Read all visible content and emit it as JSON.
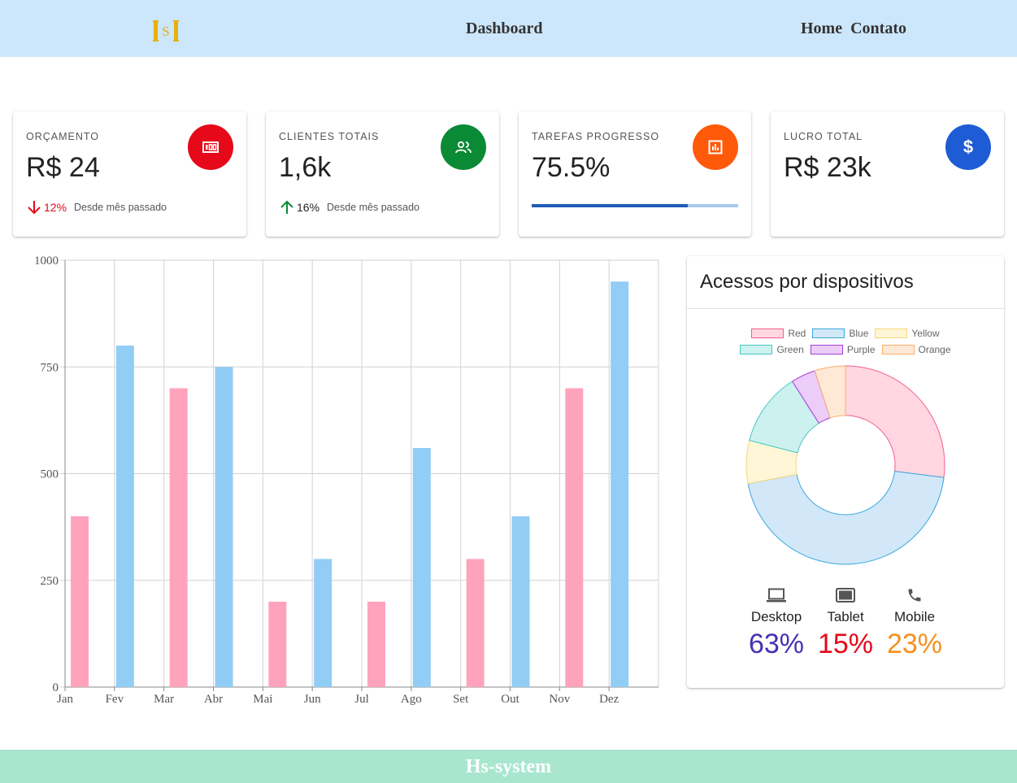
{
  "nav": {
    "logo_text": "HS",
    "title": "Dashboard",
    "links": [
      "Home",
      "Contato"
    ]
  },
  "cards": [
    {
      "label": "ORÇAMENTO",
      "value": "R$ 24",
      "change": "12%",
      "direction": "down",
      "since": "Desde mês passado",
      "icon": "money-icon",
      "icon_color": "#e5091a",
      "change_color": "#e5091a"
    },
    {
      "label": "CLIENTES TOTAIS",
      "value": "1,6k",
      "change": "16%",
      "direction": "up",
      "since": "Desde mês passado",
      "icon": "people-icon",
      "icon_color": "#0a8a34",
      "change_color": "#222222"
    },
    {
      "label": "TAREFAS PROGRESSO",
      "value": "75.5%",
      "progress": 0.755,
      "icon": "chart-icon",
      "icon_color": "#ff5a0a"
    },
    {
      "label": "LUCRO TOTAL",
      "value": "R$ 23k",
      "icon": "dollar-icon",
      "icon_color": "#1e5cd6"
    }
  ],
  "chart_data": [
    {
      "type": "bar",
      "categories": [
        "Jan",
        "Fev",
        "Mar",
        "Abr",
        "Mai",
        "Jun",
        "Jul",
        "Ago",
        "Set",
        "Out",
        "Nov",
        "Dez"
      ],
      "series": [
        {
          "values": [
            400,
            800,
            700,
            750,
            200,
            300,
            200,
            560,
            300,
            400,
            700,
            950
          ],
          "colors": [
            "#ffa3bc",
            "#91cdf5",
            "#ffa3bc",
            "#91cdf5",
            "#ffa3bc",
            "#91cdf5",
            "#ffa3bc",
            "#91cdf5",
            "#ffa3bc",
            "#91cdf5",
            "#ffa3bc",
            "#91cdf5"
          ]
        }
      ],
      "yticks": [
        "0",
        "250",
        "500",
        "750",
        "1000"
      ],
      "ylim": [
        0,
        1000
      ],
      "grid": true
    },
    {
      "type": "pie",
      "title": "Acessos por dispositivos",
      "labels": [
        "Red",
        "Blue",
        "Yellow",
        "Green",
        "Purple",
        "Orange"
      ],
      "values": [
        27,
        45,
        7,
        12,
        4,
        5
      ],
      "fill_colors": [
        "#ffd6e2",
        "#d2e8f8",
        "#fff6d8",
        "#ccf1ef",
        "#ecccf8",
        "#fde9d6"
      ],
      "border_colors": [
        "#f3608e",
        "#3ba7de",
        "#f7d57a",
        "#46c9c1",
        "#a43fd6",
        "#fcae6a"
      ],
      "legend": "top"
    }
  ],
  "devices": [
    {
      "name": "Desktop",
      "pct": "63%",
      "icon": "laptop-icon",
      "color": "#4433b5"
    },
    {
      "name": "Tablet",
      "pct": "15%",
      "icon": "tablet-icon",
      "color": "#e5091a"
    },
    {
      "name": "Mobile",
      "pct": "23%",
      "icon": "phone-icon",
      "color": "#f5901f"
    }
  ],
  "footer": {
    "text": "Hs-system"
  }
}
